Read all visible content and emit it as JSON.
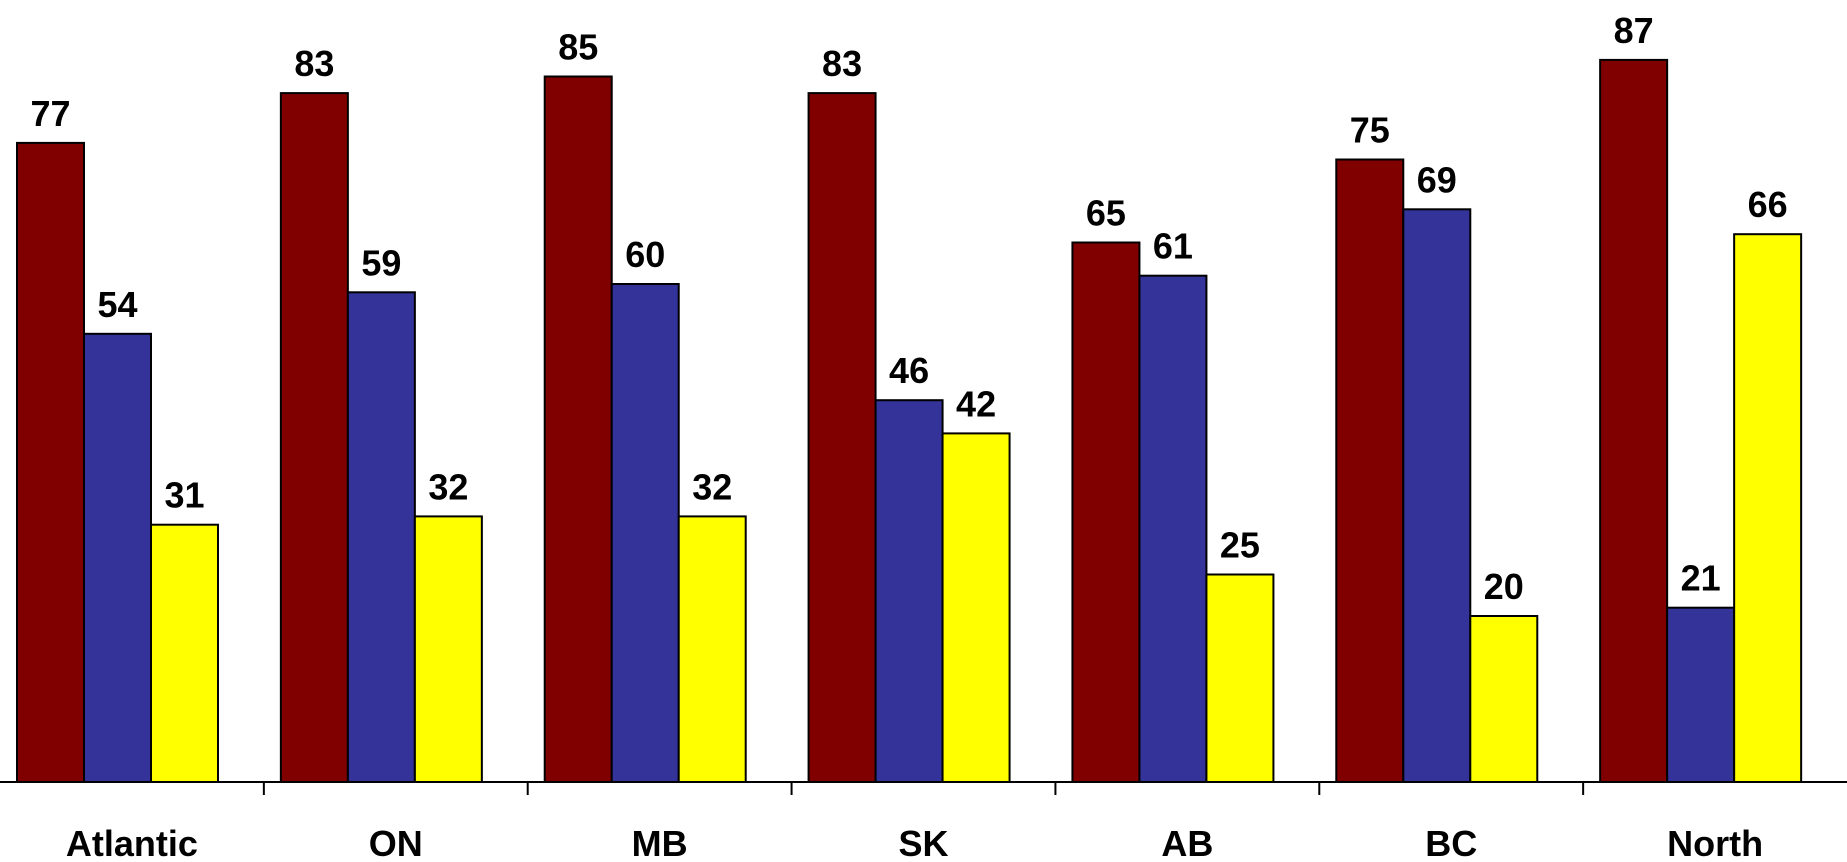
{
  "chart_data": {
    "type": "bar",
    "title": "",
    "xlabel": "",
    "ylabel": "",
    "ylim": [
      0,
      90
    ],
    "grid": false,
    "categories": [
      "Atlantic",
      "ON",
      "MB",
      "SK",
      "AB",
      "BC",
      "North"
    ],
    "series": [
      {
        "color": "#800000",
        "values": [
          77,
          83,
          85,
          83,
          65,
          75,
          87
        ]
      },
      {
        "color": "#333399",
        "values": [
          54,
          59,
          60,
          46,
          61,
          69,
          21
        ]
      },
      {
        "color": "#FFFF00",
        "values": [
          31,
          32,
          32,
          42,
          25,
          20,
          66
        ]
      }
    ]
  }
}
